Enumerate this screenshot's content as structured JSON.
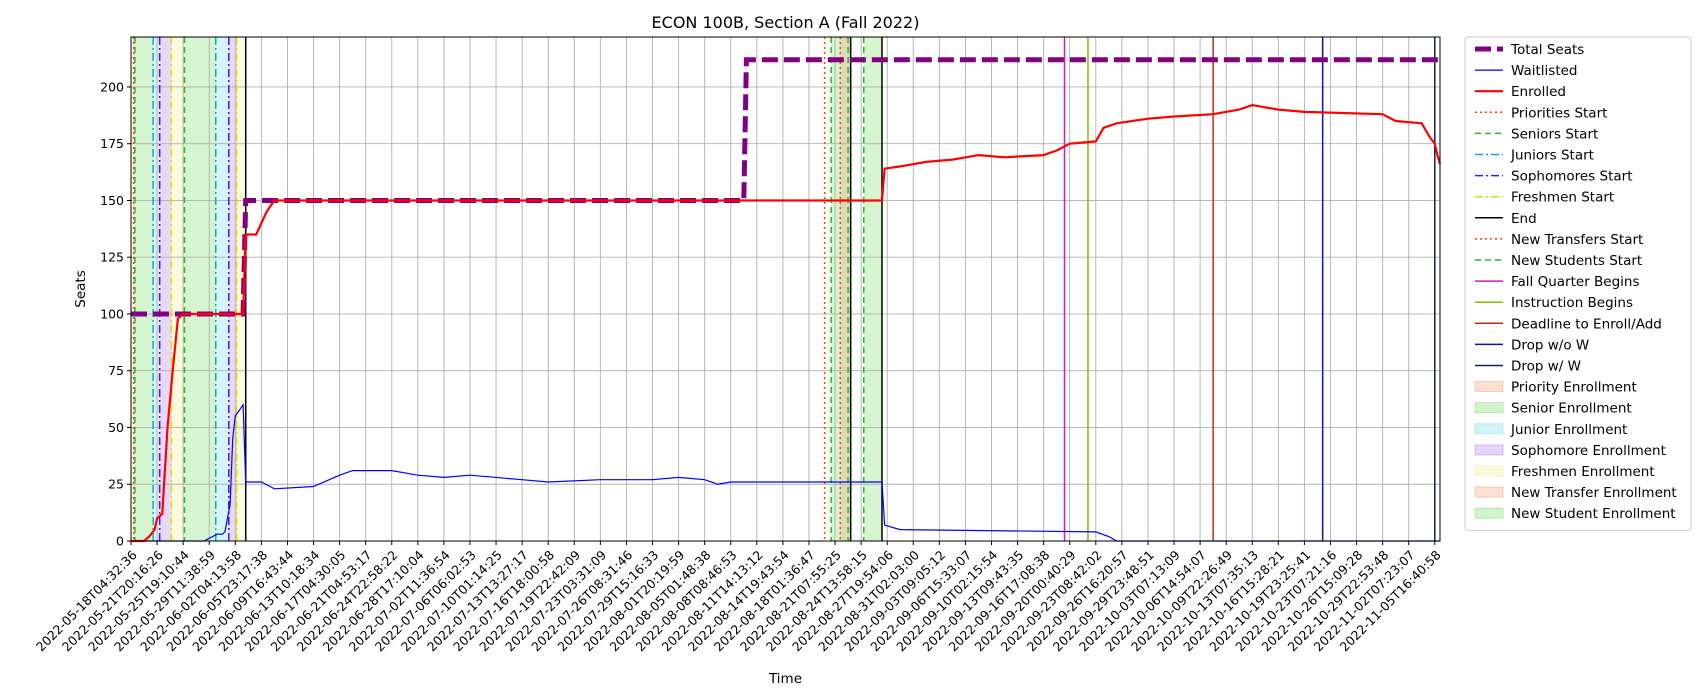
{
  "chart_data": {
    "type": "line",
    "title": "ECON 100B, Section A (Fall 2022)",
    "xlabel": "Time",
    "ylabel": "Seats",
    "x_ticks": [
      "2022-05-18T04:32:36",
      "2022-05-21T20:16:26",
      "2022-05-25T19:10:44",
      "2022-05-29T11:38:59",
      "2022-06-02T04:13:58",
      "2022-06-05T23:17:38",
      "2022-06-09T16:43:44",
      "2022-06-13T10:18:34",
      "2022-06-17T04:30:05",
      "2022-06-21T04:53:17",
      "2022-06-24T22:58:22",
      "2022-06-28T17:10:04",
      "2022-07-02T11:36:54",
      "2022-07-06T06:02:53",
      "2022-07-10T01:14:25",
      "2022-07-13T13:27:17",
      "2022-07-16T18:00:58",
      "2022-07-19T22:42:09",
      "2022-07-23T03:31:09",
      "2022-07-26T08:31:46",
      "2022-07-29T15:16:33",
      "2022-08-01T20:19:59",
      "2022-08-05T01:48:38",
      "2022-08-08T08:46:53",
      "2022-08-11T14:13:12",
      "2022-08-14T19:43:54",
      "2022-08-18T01:36:47",
      "2022-08-21T07:55:25",
      "2022-08-24T13:58:15",
      "2022-08-27T19:54:06",
      "2022-08-31T02:03:00",
      "2022-09-03T09:05:12",
      "2022-09-06T15:33:07",
      "2022-09-10T02:15:54",
      "2022-09-13T09:43:35",
      "2022-09-16T17:08:38",
      "2022-09-20T00:40:29",
      "2022-09-23T08:42:02",
      "2022-09-26T16:20:57",
      "2022-09-29T23:48:51",
      "2022-10-03T07:13:09",
      "2022-10-06T14:54:07",
      "2022-10-09T22:26:49",
      "2022-10-13T07:35:13",
      "2022-10-16T15:28:21",
      "2022-10-19T23:25:41",
      "2022-10-23T07:21:16",
      "2022-10-26T15:09:28",
      "2022-10-29T22:53:48",
      "2022-11-02T07:23:07",
      "2022-11-05T16:40:58"
    ],
    "y_ticks": [
      0,
      25,
      50,
      75,
      100,
      125,
      150,
      175,
      200
    ],
    "xlim": [
      0,
      50.2
    ],
    "ylim": [
      0,
      222
    ],
    "grid": true,
    "legend_position": "outside-right",
    "series": [
      {
        "name": "Total Seats",
        "color": "#800080",
        "style": "dashed-thick",
        "points": [
          [
            0,
            100
          ],
          [
            4.3,
            100
          ],
          [
            4.4,
            150
          ],
          [
            23.5,
            150
          ],
          [
            23.6,
            212
          ],
          [
            50.2,
            212
          ]
        ]
      },
      {
        "name": "Waitlisted",
        "color": "#0000ff",
        "style": "solid-thin",
        "points": [
          [
            0,
            0
          ],
          [
            1.3,
            0
          ],
          [
            2.8,
            0
          ],
          [
            3.3,
            3
          ],
          [
            3.5,
            3
          ],
          [
            3.6,
            4
          ],
          [
            3.7,
            10
          ],
          [
            3.8,
            16
          ],
          [
            3.9,
            45
          ],
          [
            4.0,
            55
          ],
          [
            4.3,
            60
          ],
          [
            4.4,
            26
          ],
          [
            5.0,
            26
          ],
          [
            5.5,
            23
          ],
          [
            7.0,
            24
          ],
          [
            8.0,
            29
          ],
          [
            8.5,
            31
          ],
          [
            10.0,
            31
          ],
          [
            11.0,
            29
          ],
          [
            12.0,
            28
          ],
          [
            13.0,
            29
          ],
          [
            15.0,
            27
          ],
          [
            16.0,
            26
          ],
          [
            18.0,
            27
          ],
          [
            20.0,
            27
          ],
          [
            21.0,
            28
          ],
          [
            22.0,
            27
          ],
          [
            22.5,
            25
          ],
          [
            23.0,
            26
          ],
          [
            24.0,
            26
          ],
          [
            28.8,
            26
          ],
          [
            28.9,
            7
          ],
          [
            29.5,
            5
          ],
          [
            37.0,
            4
          ],
          [
            37.5,
            2
          ],
          [
            37.8,
            0
          ],
          [
            50.2,
            0
          ]
        ]
      },
      {
        "name": "Enrolled",
        "color": "#ff0000",
        "style": "solid-thick",
        "points": [
          [
            0,
            0
          ],
          [
            0.5,
            0
          ],
          [
            0.7,
            2
          ],
          [
            0.9,
            5
          ],
          [
            1.0,
            10
          ],
          [
            1.2,
            12
          ],
          [
            1.4,
            50
          ],
          [
            1.6,
            75
          ],
          [
            1.8,
            98
          ],
          [
            2.0,
            100
          ],
          [
            4.3,
            100
          ],
          [
            4.4,
            135
          ],
          [
            4.8,
            135
          ],
          [
            5.2,
            145
          ],
          [
            5.5,
            150
          ],
          [
            28.8,
            150
          ],
          [
            28.9,
            164
          ],
          [
            29.5,
            165
          ],
          [
            30.5,
            167
          ],
          [
            31.5,
            168
          ],
          [
            32.5,
            170
          ],
          [
            33.5,
            169
          ],
          [
            35.0,
            170
          ],
          [
            35.5,
            172
          ],
          [
            36.0,
            175
          ],
          [
            37.0,
            176
          ],
          [
            37.3,
            182
          ],
          [
            37.8,
            184
          ],
          [
            39.0,
            186
          ],
          [
            40.0,
            187
          ],
          [
            41.5,
            188
          ],
          [
            42.5,
            190
          ],
          [
            43.0,
            192
          ],
          [
            44.0,
            190
          ],
          [
            45.0,
            189
          ],
          [
            48.0,
            188
          ],
          [
            48.5,
            185
          ],
          [
            49.5,
            184
          ],
          [
            49.8,
            178
          ],
          [
            50.0,
            175
          ],
          [
            50.1,
            170
          ],
          [
            50.2,
            166
          ]
        ]
      }
    ],
    "events": [
      {
        "name": "Priorities Start",
        "color": "#ff4500",
        "style": "dotted",
        "x": [
          0.1,
          26.6
        ]
      },
      {
        "name": "Seniors Start",
        "color": "#22bb22",
        "style": "dashed",
        "x": [
          0.15,
          2.05,
          26.85,
          28.1
        ]
      },
      {
        "name": "Juniors Start",
        "color": "#11aacc",
        "style": "dashdot",
        "x": [
          0.85,
          3.25
        ]
      },
      {
        "name": "Sophomores Start",
        "color": "#5511dd",
        "style": "dashdot",
        "x": [
          1.1,
          3.75
        ]
      },
      {
        "name": "Freshmen Start",
        "color": "#dddd00",
        "style": "dashdot",
        "x": [
          1.55,
          4.05
        ]
      },
      {
        "name": "End",
        "color": "#000000",
        "style": "solid",
        "x": [
          4.4,
          27.6,
          28.8
        ]
      },
      {
        "name": "New Transfers Start",
        "color": "#ff4500",
        "style": "dotted",
        "x": [
          27.2
        ]
      },
      {
        "name": "New Students Start",
        "color": "#22bb22",
        "style": "dashed",
        "x": [
          27.5
        ]
      },
      {
        "name": "Fall Quarter Begins",
        "color": "#cc1ac0",
        "style": "solid",
        "x": [
          35.8
        ]
      },
      {
        "name": "Instruction Begins",
        "color": "#88bb00",
        "style": "solid",
        "x": [
          36.7
        ]
      },
      {
        "name": "Deadline to Enroll/Add",
        "color": "#bb3311",
        "style": "solid",
        "x": [
          41.5
        ]
      },
      {
        "name": "Drop w/o W",
        "color": "#1111aa",
        "style": "solid",
        "x": [
          45.7
        ]
      },
      {
        "name": "Drop w/ W",
        "color": "#112255",
        "style": "solid",
        "x": [
          50.0
        ]
      }
    ],
    "regions": [
      {
        "name": "Priority Enrollment",
        "color": "#f4a582",
        "x": [
          0.1,
          0.15
        ]
      },
      {
        "name": "Senior Enrollment",
        "color": "#7fdc6a",
        "x": [
          0.15,
          0.85
        ]
      },
      {
        "name": "Junior Enrollment",
        "color": "#7fe0e8",
        "x": [
          0.85,
          1.1
        ]
      },
      {
        "name": "Sophomore Enrollment",
        "color": "#b388f0",
        "x": [
          1.1,
          1.55
        ]
      },
      {
        "name": "Freshmen Enrollment",
        "color": "#eeee99",
        "x": [
          1.55,
          2.05
        ]
      },
      {
        "name": "Senior Enrollment",
        "color": "#7fdc6a",
        "x": [
          2.05,
          3.25
        ]
      },
      {
        "name": "Junior Enrollment",
        "color": "#7fe0e8",
        "x": [
          3.25,
          3.75
        ]
      },
      {
        "name": "Sophomore Enrollment",
        "color": "#b388f0",
        "x": [
          3.75,
          4.05
        ]
      },
      {
        "name": "Freshmen Enrollment",
        "color": "#eeee99",
        "x": [
          4.05,
          4.4
        ]
      },
      {
        "name": "New Student Enrollment",
        "color": "#7fdc6a",
        "x": [
          26.85,
          27.6
        ]
      },
      {
        "name": "New Transfer Enrollment",
        "color": "#f4a582",
        "x": [
          27.2,
          27.6
        ]
      },
      {
        "name": "New Student Enrollment",
        "color": "#7fdc6a",
        "x": [
          28.1,
          28.8
        ]
      }
    ],
    "legend": [
      {
        "label": "Total Seats",
        "kind": "line",
        "color": "#800080",
        "style": "dashed-thick"
      },
      {
        "label": "Waitlisted",
        "kind": "line",
        "color": "#0000ff",
        "style": "solid-thin"
      },
      {
        "label": "Enrolled",
        "kind": "line",
        "color": "#ff0000",
        "style": "solid-thick"
      },
      {
        "label": "Priorities Start",
        "kind": "line",
        "color": "#ff4500",
        "style": "dotted"
      },
      {
        "label": "Seniors Start",
        "kind": "line",
        "color": "#22bb22",
        "style": "dashed"
      },
      {
        "label": "Juniors Start",
        "kind": "line",
        "color": "#11aacc",
        "style": "dashdot"
      },
      {
        "label": "Sophomores Start",
        "kind": "line",
        "color": "#5511dd",
        "style": "dashdot"
      },
      {
        "label": "Freshmen Start",
        "kind": "line",
        "color": "#dddd00",
        "style": "dashdot"
      },
      {
        "label": "End",
        "kind": "line",
        "color": "#000000",
        "style": "solid"
      },
      {
        "label": "New Transfers Start",
        "kind": "line",
        "color": "#ff4500",
        "style": "dotted"
      },
      {
        "label": "New Students Start",
        "kind": "line",
        "color": "#22bb22",
        "style": "dashed"
      },
      {
        "label": "Fall Quarter Begins",
        "kind": "line",
        "color": "#cc1ac0",
        "style": "solid"
      },
      {
        "label": "Instruction Begins",
        "kind": "line",
        "color": "#88bb00",
        "style": "solid"
      },
      {
        "label": "Deadline to Enroll/Add",
        "kind": "line",
        "color": "#bb3311",
        "style": "solid"
      },
      {
        "label": "Drop w/o W",
        "kind": "line",
        "color": "#1111aa",
        "style": "solid"
      },
      {
        "label": "Drop w/ W",
        "kind": "line",
        "color": "#112255",
        "style": "solid"
      },
      {
        "label": "Priority Enrollment",
        "kind": "patch",
        "color": "#f4a582"
      },
      {
        "label": "Senior Enrollment",
        "kind": "patch",
        "color": "#7fdc6a"
      },
      {
        "label": "Junior Enrollment",
        "kind": "patch",
        "color": "#7fe0e8"
      },
      {
        "label": "Sophomore Enrollment",
        "kind": "patch",
        "color": "#b388f0"
      },
      {
        "label": "Freshmen Enrollment",
        "kind": "patch",
        "color": "#eeee99"
      },
      {
        "label": "New Transfer Enrollment",
        "kind": "patch",
        "color": "#f4a582"
      },
      {
        "label": "New Student Enrollment",
        "kind": "patch",
        "color": "#7fdc6a"
      }
    ]
  }
}
